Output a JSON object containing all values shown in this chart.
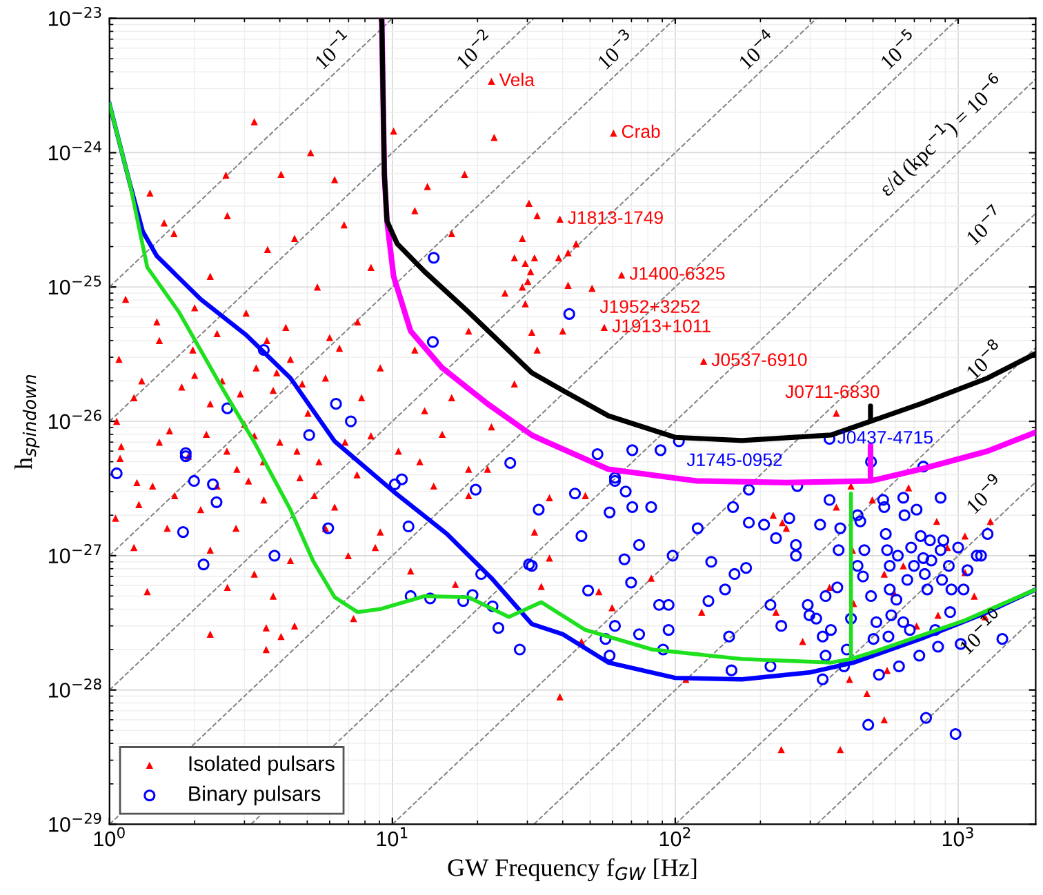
{
  "chart_data": {
    "type": "scatter",
    "log": "xy",
    "xlabel": "GW Frequency f$_{GW}$ [Hz]",
    "ylabel": "h$_{spindown}$",
    "xlim": [
      1,
      1880
    ],
    "ylim": [
      1e-29,
      1e-23
    ],
    "xticks": [
      {
        "value": 1,
        "label": "10$^{0}$"
      },
      {
        "value": 10,
        "label": "10$^{1}$"
      },
      {
        "value": 100,
        "label": "10$^{2}$"
      },
      {
        "value": 1000,
        "label": "10$^{3}$"
      }
    ],
    "yticks": [
      {
        "value": 1e-29,
        "label": "10$^{−29}$"
      },
      {
        "value": 1e-28,
        "label": "10$^{−28}$"
      },
      {
        "value": 1e-27,
        "label": "10$^{−27}$"
      },
      {
        "value": 1e-26,
        "label": "10$^{−26}$"
      },
      {
        "value": 1e-25,
        "label": "10$^{−25}$"
      },
      {
        "value": 1e-24,
        "label": "10$^{−24}$"
      },
      {
        "value": 1e-23,
        "label": "10$^{−23}$"
      }
    ],
    "grid": true,
    "legend": "bottom left",
    "series": [
      {
        "type": "line",
        "line_style": "dashed",
        "color": "#808080",
        "x": [
          1,
          10
        ],
        "values": [
          1e-25,
          1e-23
        ]
      },
      {
        "type": "line",
        "line_style": "dashed",
        "color": "#808080",
        "x": [
          1,
          31.62
        ],
        "values": [
          1e-26,
          1e-23
        ]
      },
      {
        "type": "line",
        "line_style": "dashed",
        "color": "#808080",
        "x": [
          1,
          100
        ],
        "values": [
          1e-27,
          1e-23
        ]
      },
      {
        "type": "line",
        "line_style": "dashed",
        "color": "#808080",
        "x": [
          1,
          316.2
        ],
        "values": [
          1e-28,
          1e-23
        ]
      },
      {
        "type": "line",
        "line_style": "dashed",
        "color": "#808080",
        "x": [
          1,
          1000
        ],
        "values": [
          1e-29,
          1e-23
        ]
      },
      {
        "type": "line",
        "line_style": "dashed",
        "color": "#808080",
        "x": [
          3.162,
          1880
        ],
        "values": [
          1e-29,
          3.53e-24
        ]
      },
      {
        "type": "line",
        "line_style": "dashed",
        "color": "#808080",
        "x": [
          10,
          1880
        ],
        "values": [
          1e-29,
          3.53e-25
        ]
      },
      {
        "type": "line",
        "line_style": "dashed",
        "color": "#808080",
        "x": [
          31.62,
          1880
        ],
        "values": [
          1e-29,
          3.53e-26
        ]
      },
      {
        "type": "line",
        "line_style": "dashed",
        "color": "#808080",
        "x": [
          100,
          1880
        ],
        "values": [
          1e-29,
          3.53e-27
        ]
      },
      {
        "type": "line",
        "line_style": "dashed",
        "color": "#808080",
        "x": [
          316.2,
          1880
        ],
        "values": [
          1e-29,
          3.53e-28
        ]
      },
      {
        "name": "Isolated pulsars",
        "marker": "triangle",
        "color": "#ff0000",
        "x": [
          3.25,
          5.14,
          10.1,
          22.9,
          1.39,
          2.58,
          4.04,
          6.25,
          18.0,
          13.3,
          1.56,
          1.69,
          2.61,
          3.62,
          4.51,
          6.75,
          12.0,
          16.2,
          27.0,
          30.1,
          25,
          1.14,
          2.27,
          5.43,
          8.4,
          1.47,
          3.04,
          7.53,
          12,
          18.6,
          1.08,
          1.97,
          4.36,
          9.06,
          16.2,
          27,
          1.22,
          2.27,
          3.79,
          5.03,
          7.78,
          13,
          22.4,
          1.06,
          1.63,
          3.25,
          8.4,
          1.09,
          1.42,
          2.82,
          4.71,
          1.27,
          2.1,
          3.51,
          6.25,
          9.06,
          1.22,
          2.27,
          4.36,
          6.98,
          1.36,
          2.61,
          3.25,
          3.79,
          2.27,
          3.58,
          3.58,
          4.04,
          7.29,
          4.51,
          11.6,
          16.7,
          18.6,
          14.0,
          21.7,
          18.6,
          8.7,
          1.3,
          1.8,
          2.0,
          2.5,
          2.9,
          3.3,
          3.9,
          4.8,
          5.8,
          6.5,
          1.5,
          2.4,
          3.6,
          4.2,
          6.0,
          2.0,
          1.1,
          1.5,
          1.9,
          2.2,
          2.6,
          3.0,
          3.5,
          4.0,
          4.6,
          5.5,
          6.8,
          1.25,
          1.7,
          2.4,
          3.1,
          5.3,
          7.5,
          10.5,
          12.5,
          15,
          1.6,
          2.8,
          5.8,
          1.05,
          35.9,
          48.1,
          31.8,
          35.9,
          33.6,
          53.7,
          59.8,
          46.6,
          39.1,
          82.2,
          109,
          124,
          222,
          239,
          227,
          282,
          237,
          383,
          418,
          371,
          413,
          476,
          548,
          561,
          497,
          668,
          840,
          1057,
          1300,
          1140,
          1245,
          849,
          713,
          593,
          548,
          423,
          427,
          351,
          247,
          640,
          916,
          1057,
          30.4,
          32.5,
          28.8,
          29.5,
          31.8,
          38.7,
          41.8,
          44.6,
          30.8,
          28.8,
          29.5,
          41.8,
          40.0,
          31.1,
          32.5,
          22.4,
          60.5,
          39.1,
          64.6,
          50.8,
          56.1,
          126,
          371
        ],
        "values": [
          1.7e-24,
          1e-24,
          1.45e-24,
          1.3e-24,
          5e-25,
          6.8e-25,
          6.9e-25,
          6.3e-25,
          6.9e-25,
          5.6e-25,
          3e-25,
          2.5e-25,
          3.4e-25,
          1.9e-25,
          2.3e-25,
          2.9e-25,
          3.7e-25,
          2.5e-25,
          1.65e-25,
          1.1e-25,
          9e-26,
          8.1e-26,
          1.2e-25,
          1e-25,
          1.4e-25,
          5.5e-26,
          6.4e-26,
          5.5e-26,
          3.4e-26,
          4.7e-26,
          2.9e-26,
          3.4e-26,
          2.9e-26,
          2.5e-26,
          1.5e-26,
          1.9e-26,
          1.5e-26,
          1.35e-26,
          1.7e-26,
          1.15e-26,
          1.5e-26,
          1.2e-26,
          9.1e-27,
          1e-26,
          8.5e-27,
          7.8e-27,
          7.8e-27,
          5.3e-27,
          3.3e-27,
          4.4e-27,
          3.8e-27,
          2.4e-27,
          2.2e-27,
          2.6e-27,
          2.3e-27,
          1.5e-27,
          1.15e-27,
          1.1e-27,
          9.2e-28,
          1e-27,
          5.4e-28,
          5.8e-28,
          7.3e-28,
          5e-28,
          2.6e-28,
          2.9e-28,
          2e-28,
          2.5e-28,
          3.4e-28,
          3e-28,
          7.7e-28,
          6.1e-28,
          4.4e-27,
          3.3e-27,
          4.4e-27,
          2.8e-27,
          1.15e-27,
          2e-26,
          1.8e-26,
          2.2e-26,
          2e-26,
          1.6e-26,
          2.5e-26,
          2.3e-26,
          1.9e-26,
          2.1e-26,
          3.5e-26,
          4e-26,
          4.5e-26,
          4e-26,
          5e-26,
          4.2e-26,
          7e-26,
          6.5e-27,
          7e-27,
          5.5e-27,
          8e-27,
          6e-27,
          9.5e-27,
          5e-27,
          7e-27,
          6e-27,
          5e-27,
          7e-27,
          3.5e-27,
          2.8e-27,
          3.3e-27,
          3.6e-27,
          2.8e-27,
          4e-27,
          6e-27,
          5e-27,
          8e-27,
          1.6e-27,
          1.6e-27,
          1.6e-27,
          1.9e-27,
          2.7e-27,
          2.8e-27,
          1.5e-27,
          9.6e-28,
          5.9e-28,
          5.4e-28,
          4.1e-28,
          2.3e-28,
          8.9e-29,
          6.8e-28,
          1.2e-28,
          3.8e-28,
          2e-27,
          1.76e-27,
          3.8e-28,
          2.3e-28,
          3.6e-29,
          3.6e-29,
          3.3e-27,
          2.3e-27,
          1.2e-28,
          9.4e-29,
          6e-29,
          1.4e-28,
          2.6e-27,
          3.2e-27,
          1.8e-27,
          1.4e-27,
          1.8e-27,
          5e-28,
          3.5e-28,
          3.6e-28,
          3e-28,
          5.3e-28,
          7.3e-28,
          1.1e-27,
          4.4e-28,
          5.8e-28,
          1.6e-27,
          8.4e-28,
          1.15e-27,
          7.5e-28,
          4.2e-25,
          3.4e-25,
          2.3e-25,
          1.5e-25,
          1.65e-25,
          1.65e-25,
          1.8e-25,
          2.1e-25,
          1.3e-25,
          1e-25,
          7.5e-26,
          1.03e-25,
          4.7e-26,
          4.6e-26,
          3.4e-26,
          3.4e-24,
          1.4e-24,
          3.2e-25,
          1.23e-25,
          9.8e-26,
          5e-26,
          2.8e-26,
          1.15e-26
        ]
      },
      {
        "name": "Binary pulsars",
        "marker": "circle",
        "color": "#0000ff",
        "x": [
          14.0,
          13.9,
          3.51,
          2.61,
          6.32,
          7.13,
          5.08,
          1.86,
          1.06,
          1.86,
          1.99,
          2.32,
          2.39,
          1.82,
          2.15,
          3.83,
          5.93,
          10.2,
          10.8,
          26.1,
          19.7,
          11.4,
          30.4,
          20.6,
          11.6,
          13.6,
          17.8,
          19.2,
          22.6,
          23.7,
          28.2,
          31.1,
          32.9,
          44.2,
          46.6,
          49.2,
          56.7,
          58.6,
          61.2,
          61.2,
          58.6,
          66.8,
          70.5,
          66.1,
          69.8,
          74.5,
          82.2,
          74.5,
          87.7,
          94.7,
          97.9,
          90.6,
          94.7,
          120,
          134,
          131,
          155,
          158,
          150,
          162,
          160,
          178,
          182,
          182,
          206,
          227,
          217,
          217,
          237,
          253,
          267,
          267,
          270,
          294,
          298,
          315,
          325,
          332,
          332,
          340,
          340,
          351,
          355,
          374,
          378,
          383,
          404,
          395,
          418,
          441,
          451,
          441,
          461,
          466,
          481,
          492,
          502,
          514,
          525,
          543,
          548,
          555,
          561,
          573,
          573,
          580,
          567,
          605,
          612,
          618,
          640,
          640,
          646,
          661,
          675,
          682,
          698,
          713,
          729,
          737,
          753,
          762,
          770,
          778,
          795,
          804,
          830,
          849,
          867,
          867,
          877,
          887,
          927,
          937,
          947,
          979,
          1000,
          1021,
          1045,
          1079,
          1164,
          1205,
          1271,
          1433,
          53.1,
          70.5,
          88.7,
          753,
          492,
          61.2,
          42.2,
          351,
          103
        ],
        "values": [
          1.65e-25,
          3.9e-26,
          3.4e-26,
          1.25e-26,
          1.35e-26,
          1e-26,
          7.9e-27,
          5.8e-27,
          4.1e-27,
          5.5e-27,
          3.6e-27,
          3.4e-27,
          2.5e-27,
          1.5e-27,
          8.6e-28,
          1e-27,
          1.6e-27,
          3.4e-27,
          3.7e-27,
          4.9e-27,
          3.1e-27,
          1.65e-27,
          8.6e-28,
          7.3e-28,
          5e-28,
          4.8e-28,
          4.6e-28,
          5.1e-28,
          4.2e-28,
          2.9e-28,
          2e-28,
          8.4e-28,
          2.2e-27,
          2.9e-27,
          1.4e-27,
          5.5e-28,
          2.4e-28,
          1.8e-28,
          3e-28,
          3.8e-27,
          2.1e-27,
          3e-27,
          2.3e-27,
          9.4e-28,
          6.3e-28,
          2.6e-28,
          2.3e-27,
          1.2e-27,
          4.3e-28,
          4.3e-28,
          1e-27,
          2e-28,
          2.8e-28,
          1.6e-27,
          9e-28,
          4.6e-28,
          2.5e-28,
          1.4e-28,
          5.6e-28,
          7.3e-28,
          2.3e-27,
          8.1e-28,
          1.76e-27,
          3.1e-27,
          1.7e-27,
          1.35e-27,
          4.3e-28,
          1.5e-28,
          3e-28,
          1.9e-27,
          1.2e-27,
          1e-27,
          3.3e-27,
          4.3e-28,
          3.6e-28,
          3.4e-28,
          1.7e-27,
          2.5e-28,
          1.2e-28,
          5e-28,
          1.8e-28,
          2.6e-27,
          2.8e-28,
          5.8e-28,
          1.1e-27,
          1.6e-27,
          2e-28,
          1.5e-28,
          3.4e-28,
          2e-27,
          1.8e-27,
          8.4e-28,
          7e-28,
          1.1e-27,
          5.5e-29,
          5e-28,
          2.4e-28,
          3.2e-28,
          1.3e-28,
          2.6e-27,
          2.3e-27,
          1.45e-27,
          1.1e-27,
          8.4e-28,
          5.6e-28,
          3.6e-28,
          2.5e-28,
          4.7e-28,
          1e-27,
          1.5e-28,
          3.2e-28,
          2.7e-27,
          2e-27,
          6.6e-28,
          2.8e-28,
          1.15e-27,
          8.4e-28,
          2.2e-27,
          1.8e-28,
          1.4e-27,
          9.6e-28,
          7.3e-28,
          6.2e-29,
          5.6e-28,
          1.3e-27,
          9.2e-28,
          2.8e-28,
          2.1e-28,
          2.7e-27,
          1.1e-27,
          6.6e-28,
          1.3e-27,
          8.4e-28,
          3.8e-28,
          5.6e-28,
          4.7e-29,
          1.15e-27,
          2.2e-28,
          5.6e-28,
          7.8e-28,
          1e-27,
          1e-27,
          1.45e-27,
          2.4e-28,
          5.7e-27,
          6.1e-27,
          6.1e-27,
          4.6e-27,
          5e-27,
          3.6e-27,
          6.3e-26,
          7.4e-27,
          7.1e-27
        ]
      },
      {
        "type": "line",
        "line_style": "solid",
        "color": "#ff00ff",
        "x": [
          9.17,
          9.37,
          9.57,
          10.1,
          11.6,
          15.0,
          21.7,
          31.1,
          34.7,
          58,
          119,
          247,
          490,
          490,
          490,
          737,
          1271,
          1880
        ],
        "values": [
          1e-23,
          6.8e-25,
          3.1e-25,
          1.2e-25,
          4.7e-26,
          2.5e-26,
          1.35e-26,
          7.9e-27,
          7.1e-27,
          4.4e-27,
          3.6e-27,
          3.5e-27,
          3.6e-27,
          6.6e-27,
          3.6e-27,
          4.4e-27,
          6e-27,
          8.3e-27
        ]
      },
      {
        "type": "line",
        "line_style": "solid",
        "color": "#000000",
        "x": [
          9.17,
          9.37,
          9.57,
          10.4,
          13.0,
          18.6,
          31.1,
          40.0,
          58.0,
          100,
          172,
          355,
          490,
          490,
          490,
          737,
          1271,
          1880
        ],
        "values": [
          1e-23,
          6.8e-25,
          3.1e-25,
          2.1e-25,
          1.3e-25,
          6.5e-26,
          2.3e-26,
          1.7e-26,
          1.1e-26,
          7.6e-27,
          7.2e-27,
          7.9e-27,
          1e-26,
          1.3e-26,
          1e-26,
          1.35e-26,
          2.1e-26,
          3.2e-26
        ]
      },
      {
        "type": "line",
        "line_style": "solid",
        "color": "#0000ff",
        "x": [
          1,
          1.18,
          1.31,
          1.47,
          2.1,
          3.04,
          4.36,
          6.25,
          10.1,
          15.6,
          22.4,
          31.1,
          40,
          58,
          100,
          172,
          298,
          427,
          737,
          1271,
          1880
        ],
        "values": [
          2.3e-24,
          5.9e-25,
          2.6e-25,
          1.7e-25,
          8.1e-26,
          4.4e-26,
          2.1e-26,
          7.1e-27,
          3e-27,
          1.45e-27,
          6.8e-28,
          3.1e-28,
          2.6e-28,
          1.6e-28,
          1.23e-28,
          1.2e-28,
          1.35e-28,
          1.6e-28,
          2.4e-28,
          3.8e-28,
          5.6e-28
        ]
      },
      {
        "type": "line",
        "line_style": "solid",
        "color": "#1fe01f",
        "x": [
          1,
          1.18,
          1.36,
          1.76,
          2.53,
          3.25,
          4.36,
          5.25,
          6.25,
          7.53,
          9.06,
          13,
          18.6,
          25.8,
          33.6,
          48.1,
          83,
          172,
          355,
          418,
          418,
          418,
          514,
          1057,
          1880
        ],
        "values": [
          2.3e-24,
          5.9e-25,
          1.4e-25,
          6.5e-26,
          1.7e-26,
          7e-27,
          2.2e-27,
          9.1e-28,
          4.9e-28,
          3.8e-28,
          4e-28,
          5e-28,
          4.9e-28,
          3.5e-28,
          4.5e-28,
          2.8e-28,
          2e-28,
          1.7e-28,
          1.6e-28,
          1.7e-28,
          2.9e-27,
          1.7e-28,
          1.95e-28,
          3.3e-28,
          5.6e-28
        ]
      }
    ],
    "annotations": [
      {
        "text": "Vela",
        "x": 22.4,
        "y": 3.4e-24
      },
      {
        "text": "Crab",
        "x": 60.5,
        "y": 1.4e-24
      },
      {
        "text": "J1813-1749",
        "x": 39.1,
        "y": 3.2e-25
      },
      {
        "text": "J1400-6325",
        "x": 64.6,
        "y": 1.23e-25
      },
      {
        "text": "J1952+3252",
        "x": 50.8,
        "y": 9.8e-26
      },
      {
        "text": "J1913+1011",
        "x": 56.1,
        "y": 5e-26
      },
      {
        "text": "J0537-6910",
        "x": 126,
        "y": 2.8e-26
      },
      {
        "text": "J0711-6830",
        "x": 371,
        "y": 1.15e-26
      },
      {
        "text": "J0437-4715",
        "x": 351,
        "y": 7.4e-27
      },
      {
        "text": "J1745-0952",
        "x": 103,
        "y": 7.1e-27
      },
      "10$^{−1}$",
      "10$^{−2}$",
      "10$^{−3}$",
      "10$^{−4}$",
      "10$^{−5}$",
      "ε/d (kpc$^{−1}$) = 10$^{−6}$",
      "10$^{−7}$",
      "10$^{−8}$",
      "10$^{−9}$",
      "10$^{−10}$"
    ]
  }
}
